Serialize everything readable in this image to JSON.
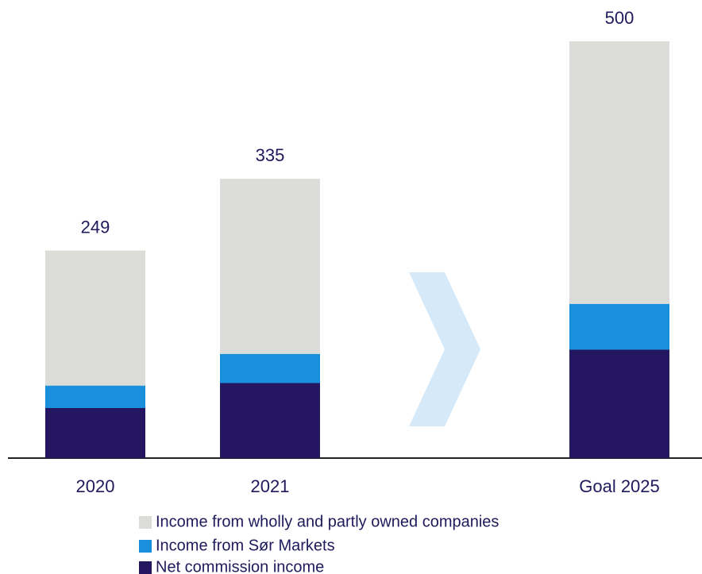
{
  "chart_data": {
    "type": "stacked_bar",
    "categories": [
      "2020",
      "2021",
      "Goal 2025"
    ],
    "series": [
      {
        "name": "Net commission income",
        "color": "#241660",
        "values": [
          60,
          90,
          130
        ]
      },
      {
        "name": "Income from Sør Markets",
        "color": "#1a8fdc",
        "values": [
          27,
          35,
          55
        ]
      },
      {
        "name": "Income from wholly and partly owned companies",
        "color": "#dcdcd8",
        "values": [
          162,
          210,
          315
        ]
      }
    ],
    "totals": [
      249,
      335,
      500
    ]
  }
}
